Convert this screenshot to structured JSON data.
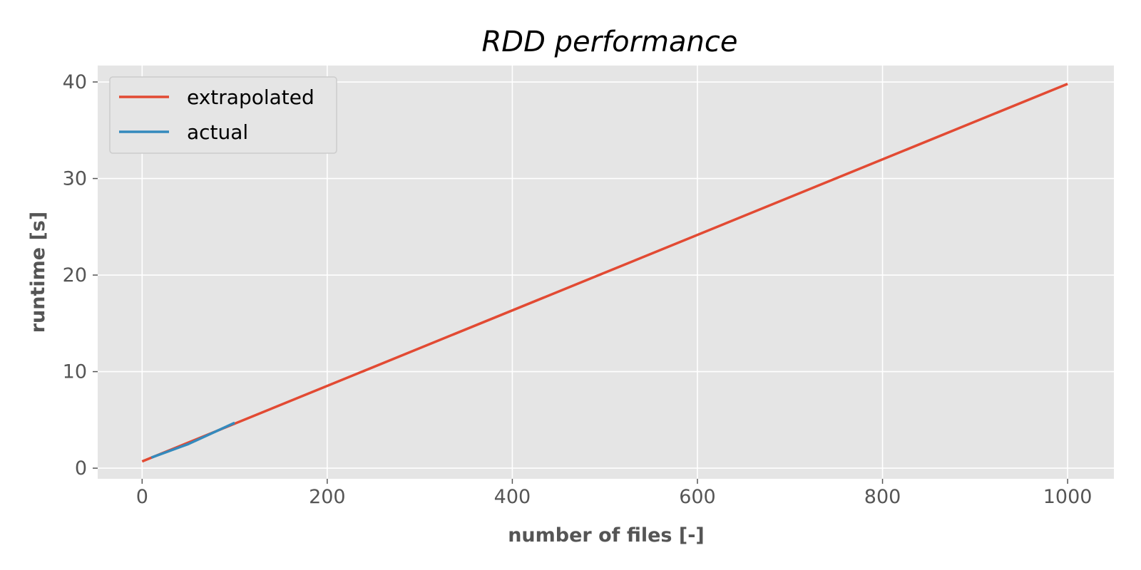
{
  "chart_data": {
    "type": "line",
    "title": "RDD performance",
    "xlabel": "number of files [-]",
    "ylabel": "runtime [s]",
    "xlim": [
      -48,
      1050
    ],
    "ylim": [
      -1.1,
      41.7
    ],
    "xticks": [
      0,
      200,
      400,
      600,
      800,
      1000
    ],
    "xtick_labels": [
      "0",
      "200",
      "400",
      "600",
      "800",
      "1000"
    ],
    "yticks": [
      0,
      10,
      20,
      30,
      40
    ],
    "ytick_labels": [
      "0",
      "10",
      "20",
      "30",
      "40"
    ],
    "grid": true,
    "legend_position": "top-left",
    "series": [
      {
        "name": "extrapolated",
        "color": "#E24A33",
        "x": [
          0,
          1000
        ],
        "y": [
          0.7,
          39.8
        ]
      },
      {
        "name": "actual",
        "color": "#348ABD",
        "x": [
          10,
          50,
          100
        ],
        "y": [
          1.1,
          2.5,
          4.7
        ]
      }
    ]
  },
  "colors": {
    "plot_background": "#E5E5E5",
    "grid": "#FFFFFF",
    "tick_text": "#555555"
  }
}
